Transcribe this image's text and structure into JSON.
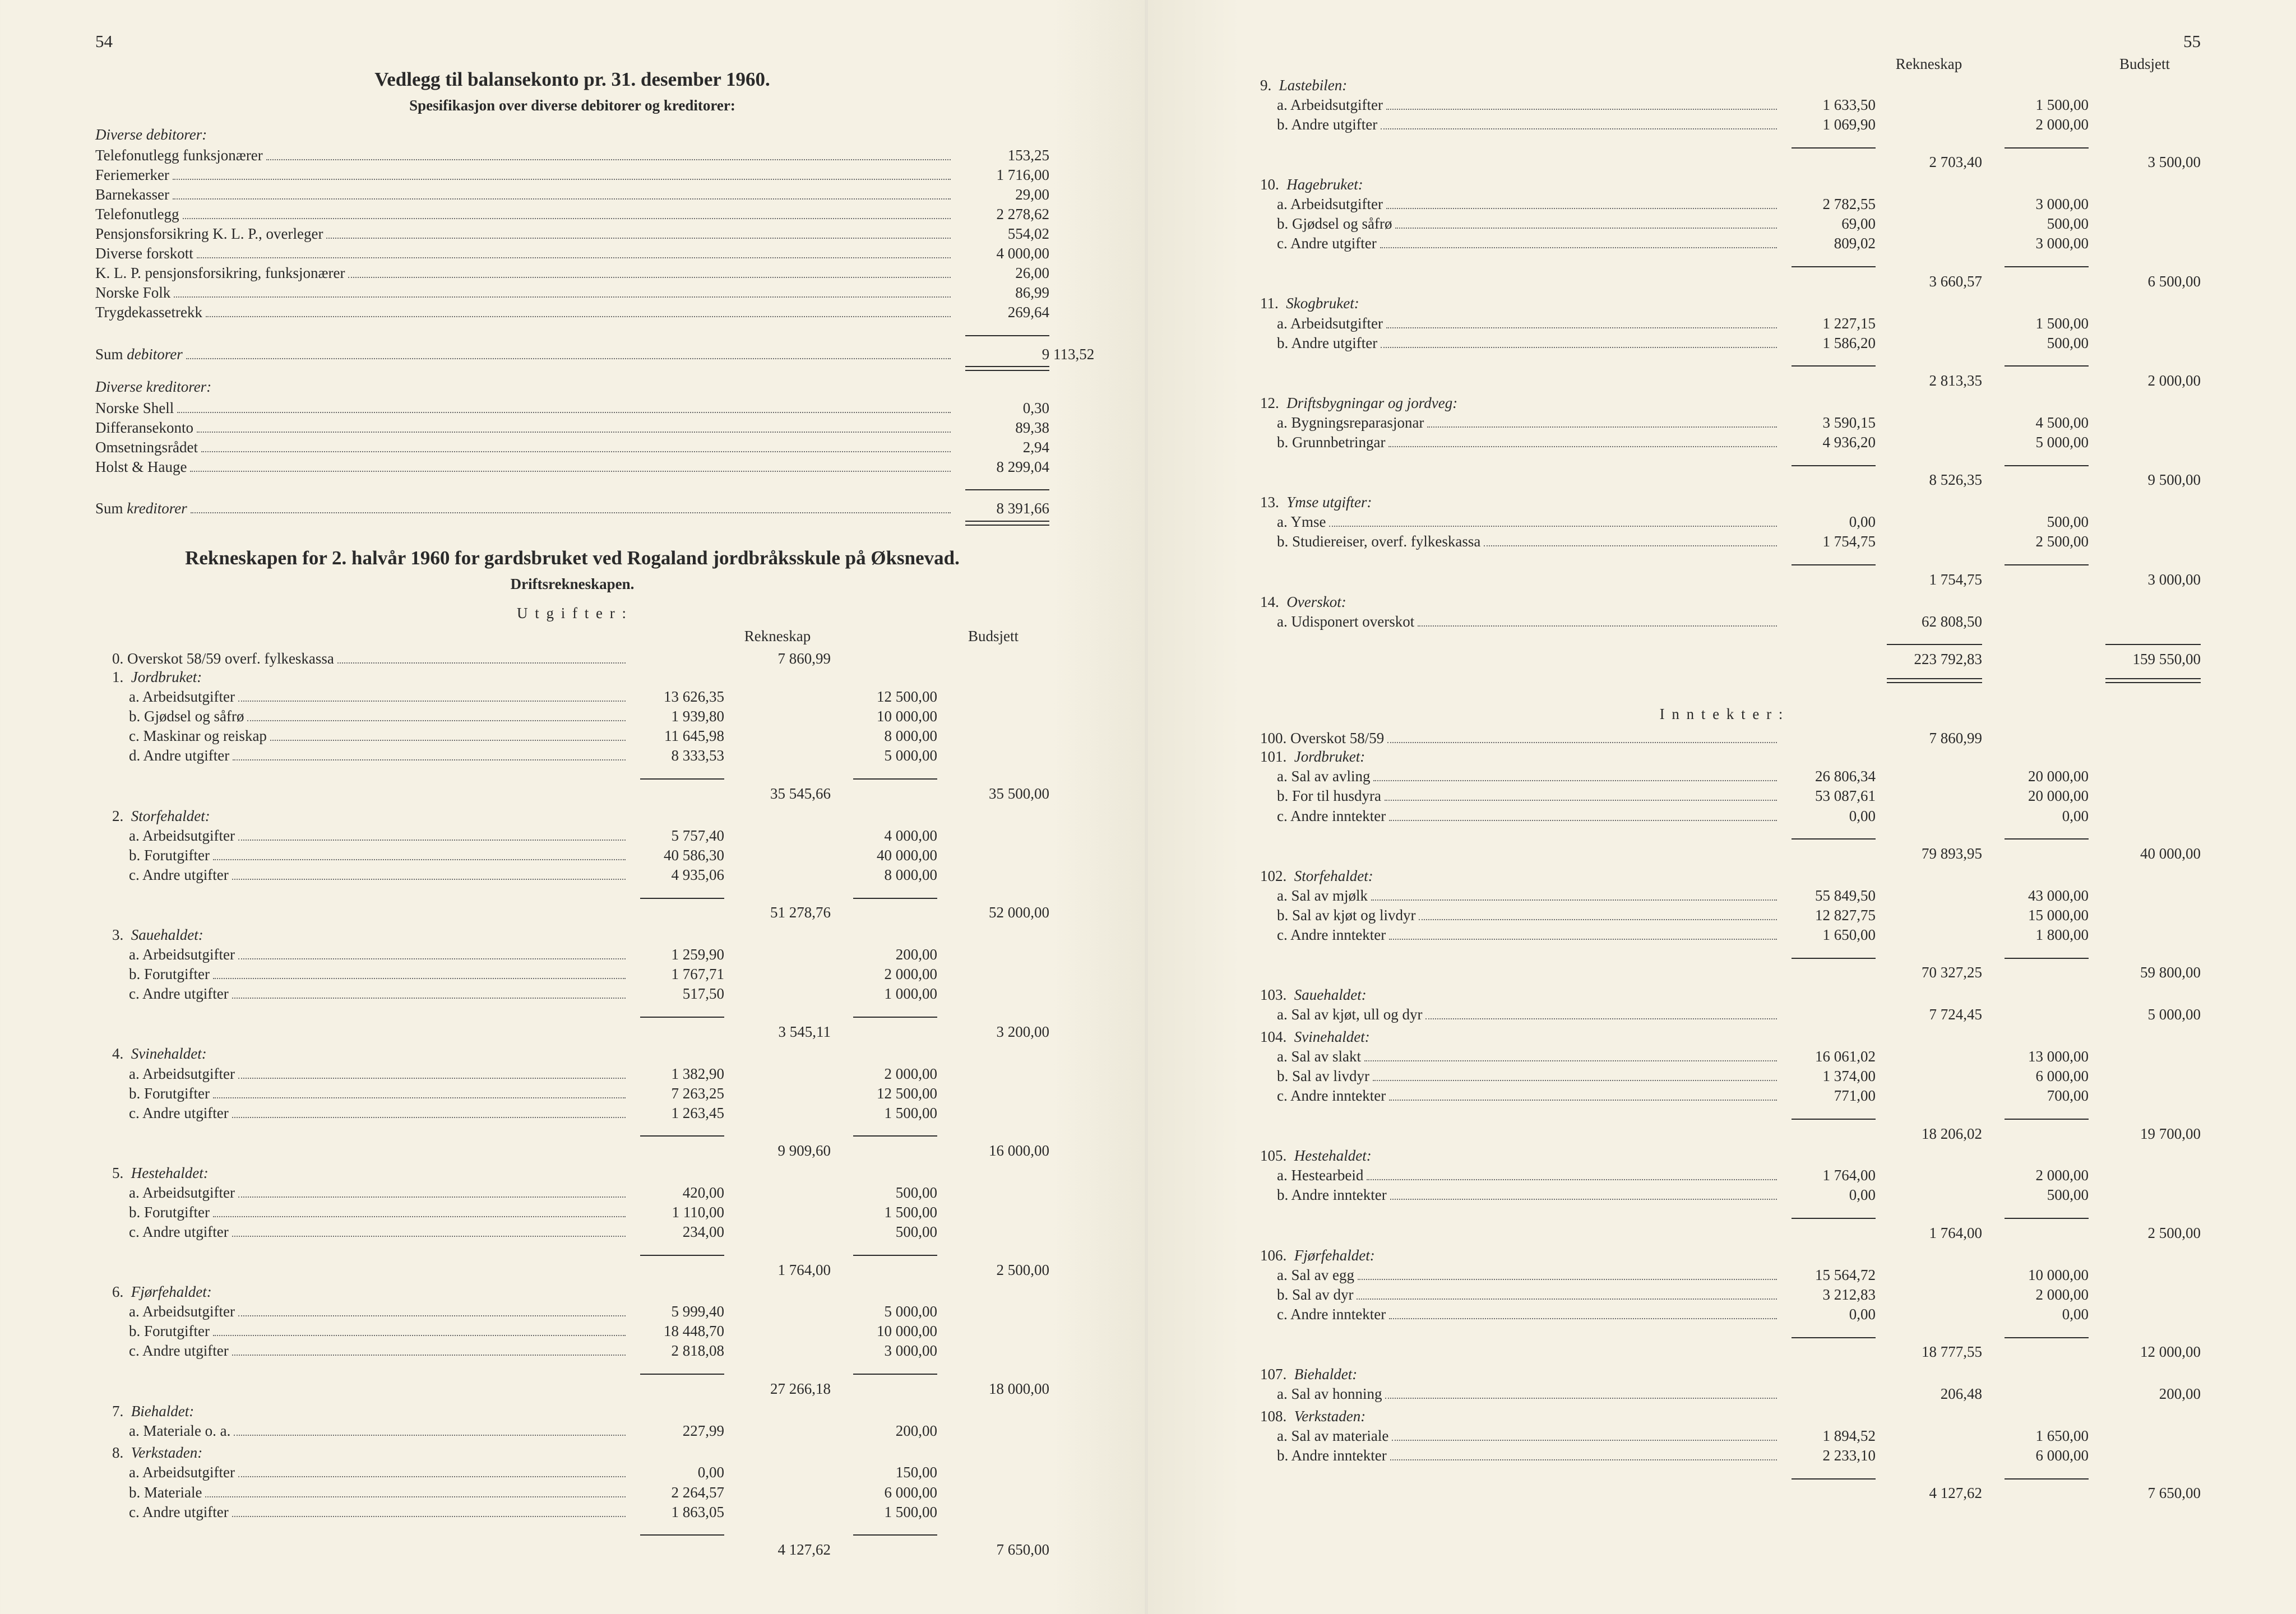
{
  "leftPage": {
    "pageNumber": "54",
    "title": "Vedlegg til balansekonto pr. 31. desember 1960.",
    "subtitle": "Spesifikasjon over diverse debitorer og kreditorer:",
    "debitorerHeading": "Diverse debitorer:",
    "debitorer": [
      {
        "label": "Telefonutlegg funksjonærer",
        "v": "153,25"
      },
      {
        "label": "Feriemerker",
        "v": "1 716,00"
      },
      {
        "label": "Barnekasser",
        "v": "29,00"
      },
      {
        "label": "Telefonutlegg",
        "v": "2 278,62"
      },
      {
        "label": "Pensjonsforsikring K. L. P., overleger",
        "v": "554,02"
      },
      {
        "label": "Diverse forskott",
        "v": "4 000,00"
      },
      {
        "label": "K. L. P. pensjonsforsikring, funksjonærer",
        "v": "26,00"
      },
      {
        "label": "Norske Folk",
        "v": "86,99"
      },
      {
        "label": "Trygdekassetrekk",
        "v": "269,64"
      }
    ],
    "sumDebitorerLabel": "Sum debitorer",
    "sumDebitorer": "9 113,52",
    "kreditorerHeading": "Diverse kreditorer:",
    "kreditorer": [
      {
        "label": "Norske Shell",
        "v": "0,30"
      },
      {
        "label": "Differansekonto",
        "v": "89,38"
      },
      {
        "label": "Omsetningsrådet",
        "v": "2,94"
      },
      {
        "label": "Holst & Hauge",
        "v": "8 299,04"
      }
    ],
    "sumKreditorerLabel": "Sum kreditorer",
    "sumKreditorer": "8 391,66",
    "rekneskapTitle": "Rekneskapen for 2. halvår 1960 for gardsbruket ved Rogaland jordbråksskule på Øksnevad.",
    "driftsTitle": "Driftsrekneskapen.",
    "utgifterLabel": "U t g i f t e r :",
    "colRekneskap": "Rekneskap",
    "colBudsjett": "Budsjett",
    "item0": {
      "label": "0.  Overskot 58/59 overf. fylkeskassa",
      "v2": "7 860,99"
    },
    "groups": [
      {
        "num": "1.",
        "title": "Jordbruket:",
        "items": [
          {
            "l": "a.  Arbeidsutgifter",
            "v1": "13 626,35",
            "v3": "12 500,00"
          },
          {
            "l": "b.  Gjødsel og såfrø",
            "v1": "1 939,80",
            "v3": "10 000,00"
          },
          {
            "l": "c.  Maskinar og reiskap",
            "v1": "11 645,98",
            "v3": "8 000,00"
          },
          {
            "l": "d.  Andre utgifter",
            "v1": "8 333,53",
            "v3": "5 000,00"
          }
        ],
        "sub2": "35 545,66",
        "sub4": "35 500,00"
      },
      {
        "num": "2.",
        "title": "Storfehaldet:",
        "items": [
          {
            "l": "a.  Arbeidsutgifter",
            "v1": "5 757,40",
            "v3": "4 000,00"
          },
          {
            "l": "b.  Forutgifter",
            "v1": "40 586,30",
            "v3": "40 000,00"
          },
          {
            "l": "c.  Andre utgifter",
            "v1": "4 935,06",
            "v3": "8 000,00"
          }
        ],
        "sub2": "51 278,76",
        "sub4": "52 000,00"
      },
      {
        "num": "3.",
        "title": "Sauehaldet:",
        "items": [
          {
            "l": "a.  Arbeidsutgifter",
            "v1": "1 259,90",
            "v3": "200,00"
          },
          {
            "l": "b.  Forutgifter",
            "v1": "1 767,71",
            "v3": "2 000,00"
          },
          {
            "l": "c.  Andre utgifter",
            "v1": "517,50",
            "v3": "1 000,00"
          }
        ],
        "sub2": "3 545,11",
        "sub4": "3 200,00"
      },
      {
        "num": "4.",
        "title": "Svinehaldet:",
        "items": [
          {
            "l": "a.  Arbeidsutgifter",
            "v1": "1 382,90",
            "v3": "2 000,00"
          },
          {
            "l": "b.  Forutgifter",
            "v1": "7 263,25",
            "v3": "12 500,00"
          },
          {
            "l": "c.  Andre utgifter",
            "v1": "1 263,45",
            "v3": "1 500,00"
          }
        ],
        "sub2": "9 909,60",
        "sub4": "16 000,00"
      },
      {
        "num": "5.",
        "title": "Hestehaldet:",
        "items": [
          {
            "l": "a.  Arbeidsutgifter",
            "v1": "420,00",
            "v3": "500,00"
          },
          {
            "l": "b.  Forutgifter",
            "v1": "1 110,00",
            "v3": "1 500,00"
          },
          {
            "l": "c.  Andre utgifter",
            "v1": "234,00",
            "v3": "500,00"
          }
        ],
        "sub2": "1 764,00",
        "sub4": "2 500,00"
      },
      {
        "num": "6.",
        "title": "Fjørfehaldet:",
        "items": [
          {
            "l": "a.  Arbeidsutgifter",
            "v1": "5 999,40",
            "v3": "5 000,00"
          },
          {
            "l": "b.  Forutgifter",
            "v1": "18 448,70",
            "v3": "10 000,00"
          },
          {
            "l": "c.  Andre utgifter",
            "v1": "2 818,08",
            "v3": "3 000,00"
          }
        ],
        "sub2": "27 266,18",
        "sub4": "18 000,00"
      },
      {
        "num": "7.",
        "title": "Biehaldet:",
        "items": [
          {
            "l": "a.  Materiale o. a.",
            "v1": "227,99",
            "v3": "200,00"
          }
        ]
      },
      {
        "num": "8.",
        "title": "Verkstaden:",
        "items": [
          {
            "l": "a.  Arbeidsutgifter",
            "v1": "0,00",
            "v3": "150,00"
          },
          {
            "l": "b.  Materiale",
            "v1": "2 264,57",
            "v3": "6 000,00"
          },
          {
            "l": "c.  Andre utgifter",
            "v1": "1 863,05",
            "v3": "1 500,00"
          }
        ],
        "sub2": "4 127,62",
        "sub4": "7 650,00"
      }
    ]
  },
  "rightPage": {
    "pageNumber": "55",
    "colRekneskap": "Rekneskap",
    "colBudsjett": "Budsjett",
    "groupsTop": [
      {
        "num": "9.",
        "title": "Lastebilen:",
        "items": [
          {
            "l": "a.  Arbeidsutgifter",
            "v1": "1 633,50",
            "v3": "1 500,00"
          },
          {
            "l": "b.  Andre utgifter",
            "v1": "1 069,90",
            "v3": "2 000,00"
          }
        ],
        "sub2": "2 703,40",
        "sub4": "3 500,00"
      },
      {
        "num": "10.",
        "title": "Hagebruket:",
        "items": [
          {
            "l": "a.  Arbeidsutgifter",
            "v1": "2 782,55",
            "v3": "3 000,00"
          },
          {
            "l": "b.  Gjødsel og såfrø",
            "v1": "69,00",
            "v3": "500,00"
          },
          {
            "l": "c.  Andre utgifter",
            "v1": "809,02",
            "v3": "3 000,00"
          }
        ],
        "sub2": "3 660,57",
        "sub4": "6 500,00"
      },
      {
        "num": "11.",
        "title": "Skogbruket:",
        "items": [
          {
            "l": "a.  Arbeidsutgifter",
            "v1": "1 227,15",
            "v3": "1 500,00"
          },
          {
            "l": "b.  Andre utgifter",
            "v1": "1 586,20",
            "v3": "500,00"
          }
        ],
        "sub2": "2 813,35",
        "sub4": "2 000,00"
      },
      {
        "num": "12.",
        "title": "Driftsbygningar og jordveg:",
        "items": [
          {
            "l": "a.  Bygningsreparasjonar",
            "v1": "3 590,15",
            "v3": "4 500,00"
          },
          {
            "l": "b.  Grunnbetringar",
            "v1": "4 936,20",
            "v3": "5 000,00"
          }
        ],
        "sub2": "8 526,35",
        "sub4": "9 500,00"
      },
      {
        "num": "13.",
        "title": "Ymse utgifter:",
        "items": [
          {
            "l": "a.  Ymse",
            "v1": "0,00",
            "v3": "500,00"
          },
          {
            "l": "b.  Studiereiser, overf. fylkeskassa",
            "v1": "1 754,75",
            "v3": "2 500,00"
          }
        ],
        "sub2": "1 754,75",
        "sub4": "3 000,00"
      },
      {
        "num": "14.",
        "title": "Overskot:",
        "items": [
          {
            "l": "a.  Udisponert overskot",
            "v2": "62 808,50"
          }
        ],
        "grand2": "223 792,83",
        "grand4": "159 550,00"
      }
    ],
    "inntekterLabel": "I n n t e k t e r :",
    "item100": {
      "label": "100.  Overskot 58/59",
      "v2": "7 860,99"
    },
    "groupsBottom": [
      {
        "num": "101.",
        "title": "Jordbruket:",
        "items": [
          {
            "l": "a.  Sal av avling",
            "v1": "26 806,34",
            "v3": "20 000,00"
          },
          {
            "l": "b.  For til husdyra",
            "v1": "53 087,61",
            "v3": "20 000,00"
          },
          {
            "l": "c.  Andre inntekter",
            "v1": "0,00",
            "v3": "0,00"
          }
        ],
        "sub2": "79 893,95",
        "sub4": "40 000,00"
      },
      {
        "num": "102.",
        "title": "Storfehaldet:",
        "items": [
          {
            "l": "a.  Sal av mjølk",
            "v1": "55 849,50",
            "v3": "43 000,00"
          },
          {
            "l": "b.  Sal av kjøt og livdyr",
            "v1": "12 827,75",
            "v3": "15 000,00"
          },
          {
            "l": "c.  Andre inntekter",
            "v1": "1 650,00",
            "v3": "1 800,00"
          }
        ],
        "sub2": "70 327,25",
        "sub4": "59 800,00"
      },
      {
        "num": "103.",
        "title": "Sauehaldet:",
        "items": [
          {
            "l": "a.  Sal av kjøt, ull og dyr",
            "v2": "7 724,45",
            "v4": "5 000,00"
          }
        ]
      },
      {
        "num": "104.",
        "title": "Svinehaldet:",
        "items": [
          {
            "l": "a.  Sal av slakt",
            "v1": "16 061,02",
            "v3": "13 000,00"
          },
          {
            "l": "b.  Sal av livdyr",
            "v1": "1 374,00",
            "v3": "6 000,00"
          },
          {
            "l": "c.  Andre inntekter",
            "v1": "771,00",
            "v3": "700,00"
          }
        ],
        "sub2": "18 206,02",
        "sub4": "19 700,00"
      },
      {
        "num": "105.",
        "title": "Hestehaldet:",
        "items": [
          {
            "l": "a.  Hestearbeid",
            "v1": "1 764,00",
            "v3": "2 000,00"
          },
          {
            "l": "b.  Andre inntekter",
            "v1": "0,00",
            "v3": "500,00"
          }
        ],
        "sub2": "1 764,00",
        "sub4": "2 500,00"
      },
      {
        "num": "106.",
        "title": "Fjørfehaldet:",
        "items": [
          {
            "l": "a.  Sal av egg",
            "v1": "15 564,72",
            "v3": "10 000,00"
          },
          {
            "l": "b.  Sal av dyr",
            "v1": "3 212,83",
            "v3": "2 000,00"
          },
          {
            "l": "c.  Andre inntekter",
            "v1": "0,00",
            "v3": "0,00"
          }
        ],
        "sub2": "18 777,55",
        "sub4": "12 000,00"
      },
      {
        "num": "107.",
        "title": "Biehaldet:",
        "items": [
          {
            "l": "a.  Sal av honning",
            "v2": "206,48",
            "v4": "200,00"
          }
        ]
      },
      {
        "num": "108.",
        "title": "Verkstaden:",
        "items": [
          {
            "l": "a.  Sal av materiale",
            "v1": "1 894,52",
            "v3": "1 650,00"
          },
          {
            "l": "b.  Andre inntekter",
            "v1": "2 233,10",
            "v3": "6 000,00"
          }
        ],
        "sub2": "4 127,62",
        "sub4": "7 650,00"
      }
    ]
  },
  "style": {
    "background": "#f5f1e4",
    "text": "#2a2a2a",
    "dots": "#6b6b6b",
    "fontBody": 27,
    "fontTitle": 35
  }
}
